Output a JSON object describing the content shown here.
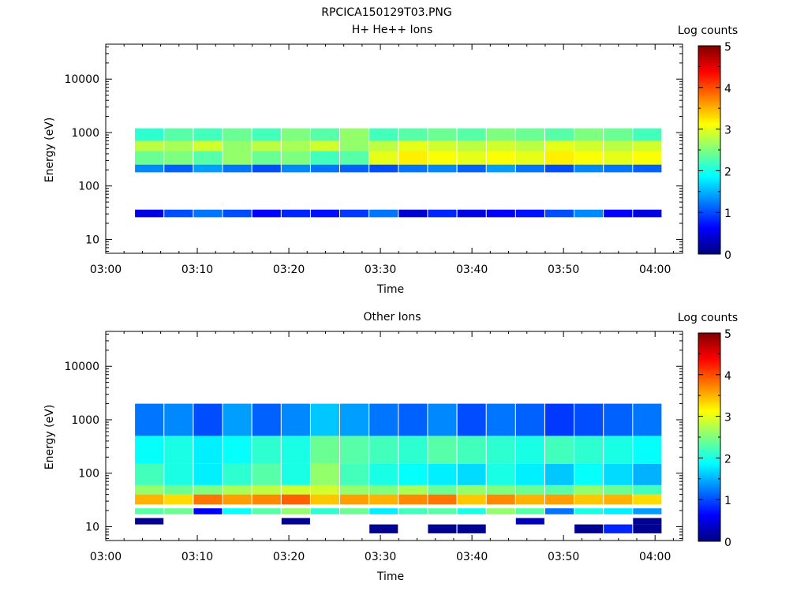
{
  "figure_title": "RPCICA150129T03.PNG",
  "colors": {
    "colormap": [
      "#00007f",
      "#0000ff",
      "#007fff",
      "#00ffff",
      "#7fff7f",
      "#ffff00",
      "#ff7f00",
      "#ff0000",
      "#7f0000"
    ]
  },
  "chart_data": [
    {
      "type": "heatmap",
      "title": "H+ He++ Ions",
      "xlabel": "Time",
      "ylabel": "Energy (eV)",
      "x_ticks": [
        "03:00",
        "03:10",
        "03:20",
        "03:30",
        "03:40",
        "03:50",
        "04:00"
      ],
      "y_ticks": [
        "10",
        "100",
        "1000",
        "10000"
      ],
      "y_scale": "log",
      "ylim": [
        5.5,
        45000
      ],
      "xlim_minutes": [
        0,
        63
      ],
      "time_bins_start_minutes": [
        3.2,
        6.4,
        9.6,
        12.8,
        16.0,
        19.2,
        22.4,
        25.6,
        28.8,
        32.0,
        35.2,
        38.4,
        41.6,
        44.8,
        48.0,
        51.2,
        54.4,
        57.6
      ],
      "time_bin_width_minutes": 3.2,
      "colorbar": {
        "label": "Log counts",
        "ticks": [
          "0",
          "1",
          "2",
          "3",
          "4",
          "5"
        ],
        "range": [
          0,
          5
        ]
      },
      "bands": [
        {
          "e_low": 700,
          "e_high": 1200,
          "log_counts": [
            2.1,
            2.3,
            2.2,
            2.4,
            2.2,
            2.5,
            2.3,
            2.6,
            2.2,
            2.3,
            2.4,
            2.3,
            2.5,
            2.4,
            2.3,
            2.5,
            2.4,
            2.2
          ]
        },
        {
          "e_low": 450,
          "e_high": 700,
          "log_counts": [
            2.8,
            2.7,
            2.9,
            2.6,
            2.8,
            2.7,
            2.9,
            2.6,
            2.8,
            3.0,
            2.9,
            2.8,
            2.9,
            2.8,
            3.0,
            2.9,
            2.8,
            2.9
          ]
        },
        {
          "e_low": 250,
          "e_high": 450,
          "log_counts": [
            2.4,
            2.5,
            2.3,
            2.6,
            2.4,
            2.5,
            2.2,
            2.3,
            3.0,
            3.2,
            3.1,
            3.0,
            3.1,
            3.0,
            3.2,
            3.1,
            3.0,
            3.1
          ]
        },
        {
          "e_low": 180,
          "e_high": 250,
          "log_counts": [
            1.3,
            1.1,
            1.4,
            1.2,
            1.0,
            1.3,
            1.2,
            1.1,
            1.0,
            1.2,
            1.3,
            1.1,
            1.4,
            1.2,
            1.0,
            1.3,
            1.2,
            1.1
          ]
        },
        {
          "e_low": 26,
          "e_high": 36,
          "log_counts": [
            0.5,
            1.0,
            1.2,
            1.0,
            0.6,
            0.8,
            0.7,
            0.9,
            1.2,
            0.4,
            0.8,
            0.5,
            0.6,
            0.7,
            1.0,
            1.3,
            0.6,
            0.5
          ]
        }
      ]
    },
    {
      "type": "heatmap",
      "title": "Other Ions",
      "xlabel": "Time",
      "ylabel": "Energy (eV)",
      "x_ticks": [
        "03:00",
        "03:10",
        "03:20",
        "03:30",
        "03:40",
        "03:50",
        "04:00"
      ],
      "y_ticks": [
        "10",
        "100",
        "1000",
        "10000"
      ],
      "y_scale": "log",
      "ylim": [
        5.5,
        45000
      ],
      "xlim_minutes": [
        0,
        63
      ],
      "time_bins_start_minutes": [
        3.2,
        6.4,
        9.6,
        12.8,
        16.0,
        19.2,
        22.4,
        25.6,
        28.8,
        32.0,
        35.2,
        38.4,
        41.6,
        44.8,
        48.0,
        51.2,
        54.4,
        57.6
      ],
      "time_bin_width_minutes": 3.2,
      "colorbar": {
        "label": "Log counts",
        "ticks": [
          "0",
          "1",
          "2",
          "3",
          "4",
          "5"
        ],
        "range": [
          0,
          5
        ]
      },
      "bands": [
        {
          "e_low": 26,
          "e_high": 40,
          "log_counts": [
            3.5,
            3.3,
            3.8,
            3.6,
            3.7,
            3.9,
            3.4,
            3.6,
            3.5,
            3.7,
            3.8,
            3.4,
            3.7,
            3.5,
            3.6,
            3.4,
            3.5,
            3.3
          ]
        },
        {
          "e_low": 40,
          "e_high": 60,
          "log_counts": [
            2.6,
            2.4,
            2.5,
            2.7,
            2.8,
            2.9,
            2.9,
            2.6,
            2.5,
            2.7,
            2.4,
            2.6,
            2.5,
            2.4,
            2.3,
            2.6,
            2.4,
            2.2
          ]
        },
        {
          "e_low": 60,
          "e_high": 150,
          "log_counts": [
            2.2,
            2.0,
            1.8,
            2.1,
            2.3,
            2.0,
            2.6,
            2.2,
            2.0,
            1.9,
            1.8,
            1.7,
            2.0,
            1.8,
            1.6,
            1.9,
            1.7,
            1.5
          ]
        },
        {
          "e_low": 150,
          "e_high": 500,
          "log_counts": [
            1.9,
            2.0,
            1.8,
            1.9,
            2.1,
            2.0,
            2.4,
            2.3,
            2.2,
            2.1,
            2.3,
            2.2,
            2.1,
            2.0,
            2.2,
            2.1,
            2.0,
            1.9
          ]
        },
        {
          "e_low": 500,
          "e_high": 2000,
          "log_counts": [
            1.2,
            1.3,
            1.0,
            1.4,
            1.1,
            1.3,
            1.6,
            1.4,
            1.2,
            1.1,
            1.3,
            1.0,
            1.2,
            1.1,
            0.9,
            1.0,
            1.1,
            1.2
          ]
        },
        {
          "e_low": 17,
          "e_high": 22,
          "log_counts": [
            2.3,
            2.4,
            0.6,
            1.9,
            2.3,
            2.6,
            2.1,
            2.4,
            1.8,
            2.2,
            2.3,
            2.0,
            2.6,
            2.3,
            1.2,
            2.0,
            1.8,
            1.4
          ]
        },
        {
          "e_low": 11,
          "e_high": 14.5,
          "log_counts": [
            0.1,
            null,
            null,
            null,
            null,
            0.1,
            null,
            null,
            null,
            null,
            null,
            null,
            null,
            0.3,
            null,
            null,
            null,
            0.1
          ]
        },
        {
          "e_low": 7.5,
          "e_high": 11,
          "log_counts": [
            null,
            null,
            null,
            null,
            null,
            null,
            null,
            null,
            0.1,
            null,
            0.1,
            0.1,
            null,
            null,
            null,
            0.1,
            0.8,
            0.1
          ]
        }
      ]
    }
  ]
}
